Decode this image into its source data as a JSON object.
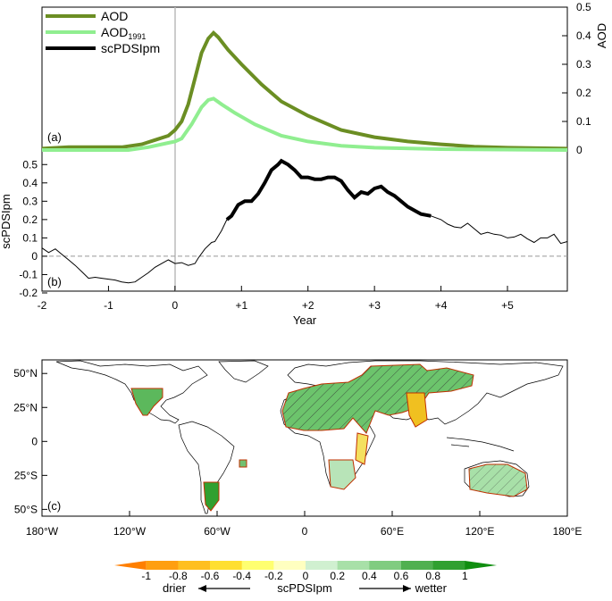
{
  "chart_data": [
    {
      "panel_label": "(a)",
      "type": "line",
      "ylabel": "AOD",
      "ylim": [
        0,
        0.5
      ],
      "yticks": [
        "0",
        "0.1",
        "0.2",
        "0.3",
        "0.4",
        "0.5"
      ],
      "xlim": [
        -2,
        5.9
      ],
      "legend": {
        "aod": "AOD",
        "aod1991_base": "AOD",
        "aod1991_sub": "1991",
        "spdsi": "scPDSIpm"
      },
      "series": [
        {
          "name": "AOD",
          "color": "#6b8e23",
          "points": [
            [
              -2,
              0.005
            ],
            [
              -1.6,
              0.01
            ],
            [
              -1.2,
              0.01
            ],
            [
              -0.8,
              0.01
            ],
            [
              -0.5,
              0.02
            ],
            [
              -0.3,
              0.035
            ],
            [
              -0.1,
              0.05
            ],
            [
              0,
              0.07
            ],
            [
              0.1,
              0.1
            ],
            [
              0.2,
              0.16
            ],
            [
              0.3,
              0.25
            ],
            [
              0.4,
              0.34
            ],
            [
              0.5,
              0.39
            ],
            [
              0.58,
              0.41
            ],
            [
              0.65,
              0.395
            ],
            [
              0.8,
              0.35
            ],
            [
              1,
              0.3
            ],
            [
              1.3,
              0.23
            ],
            [
              1.6,
              0.17
            ],
            [
              2,
              0.12
            ],
            [
              2.5,
              0.07
            ],
            [
              3,
              0.045
            ],
            [
              3.5,
              0.03
            ],
            [
              4,
              0.02
            ],
            [
              4.5,
              0.012
            ],
            [
              5,
              0.008
            ],
            [
              5.9,
              0.005
            ]
          ]
        },
        {
          "name": "AOD1991",
          "color": "#90ee90",
          "points": [
            [
              -2,
              0
            ],
            [
              -1.2,
              0
            ],
            [
              -0.7,
              0
            ],
            [
              -0.4,
              0.01
            ],
            [
              -0.1,
              0.025
            ],
            [
              0,
              0.03
            ],
            [
              0.1,
              0.04
            ],
            [
              0.25,
              0.09
            ],
            [
              0.4,
              0.15
            ],
            [
              0.5,
              0.175
            ],
            [
              0.58,
              0.18
            ],
            [
              0.7,
              0.16
            ],
            [
              0.9,
              0.13
            ],
            [
              1.2,
              0.09
            ],
            [
              1.6,
              0.05
            ],
            [
              2,
              0.03
            ],
            [
              2.5,
              0.015
            ],
            [
              3,
              0.008
            ],
            [
              4,
              0.003
            ],
            [
              5.9,
              0
            ]
          ]
        }
      ]
    },
    {
      "panel_label": "(b)",
      "type": "line",
      "ylabel": "scPDSIpm",
      "ylim": [
        -0.2,
        0.55
      ],
      "yticks": [
        "0.5",
        "0.4",
        "0.3",
        "0.2",
        "0.1",
        "0",
        "-0.1",
        "-0.2"
      ],
      "xlabel": "Year",
      "xticks": [
        "-2",
        "-1",
        "0",
        "+1",
        "+2",
        "+3",
        "+4",
        "+5"
      ],
      "xtick_values": [
        -2,
        -1,
        0,
        1,
        2,
        3,
        4,
        5
      ],
      "xlim": [
        -2,
        5.9
      ],
      "zero_line": true,
      "series": [
        {
          "name": "scPDSIpm",
          "color": "#000000",
          "points": [
            [
              -2,
              0.045
            ],
            [
              -1.9,
              0.02
            ],
            [
              -1.8,
              0.04
            ],
            [
              -1.7,
              0.01
            ],
            [
              -1.6,
              -0.02
            ],
            [
              -1.5,
              -0.05
            ],
            [
              -1.4,
              -0.085
            ],
            [
              -1.3,
              -0.12
            ],
            [
              -1.2,
              -0.115
            ],
            [
              -1.1,
              -0.12
            ],
            [
              -1,
              -0.125
            ],
            [
              -0.9,
              -0.13
            ],
            [
              -0.8,
              -0.14
            ],
            [
              -0.7,
              -0.145
            ],
            [
              -0.6,
              -0.14
            ],
            [
              -0.5,
              -0.115
            ],
            [
              -0.4,
              -0.09
            ],
            [
              -0.3,
              -0.06
            ],
            [
              -0.2,
              -0.04
            ],
            [
              -0.1,
              -0.02
            ],
            [
              0,
              -0.04
            ],
            [
              0.1,
              -0.035
            ],
            [
              0.2,
              -0.05
            ],
            [
              0.3,
              -0.04
            ],
            [
              0.35,
              -0.01
            ],
            [
              0.45,
              0.04
            ],
            [
              0.55,
              0.075
            ],
            [
              0.6,
              0.08
            ],
            [
              0.7,
              0.14
            ],
            [
              0.78,
              0.2
            ],
            [
              0.85,
              0.22
            ],
            [
              0.95,
              0.28
            ],
            [
              1.05,
              0.3
            ],
            [
              1.15,
              0.3
            ],
            [
              1.25,
              0.34
            ],
            [
              1.35,
              0.4
            ],
            [
              1.45,
              0.47
            ],
            [
              1.55,
              0.5
            ],
            [
              1.6,
              0.52
            ],
            [
              1.7,
              0.5
            ],
            [
              1.8,
              0.47
            ],
            [
              1.9,
              0.43
            ],
            [
              2,
              0.43
            ],
            [
              2.1,
              0.42
            ],
            [
              2.2,
              0.42
            ],
            [
              2.3,
              0.43
            ],
            [
              2.4,
              0.43
            ],
            [
              2.5,
              0.41
            ],
            [
              2.6,
              0.36
            ],
            [
              2.7,
              0.32
            ],
            [
              2.8,
              0.35
            ],
            [
              2.9,
              0.34
            ],
            [
              3.0,
              0.37
            ],
            [
              3.1,
              0.38
            ],
            [
              3.2,
              0.35
            ],
            [
              3.3,
              0.33
            ],
            [
              3.4,
              0.3
            ],
            [
              3.5,
              0.27
            ],
            [
              3.6,
              0.25
            ],
            [
              3.7,
              0.23
            ],
            [
              3.85,
              0.22
            ],
            [
              4,
              0.2
            ],
            [
              4.1,
              0.175
            ],
            [
              4.2,
              0.16
            ],
            [
              4.3,
              0.155
            ],
            [
              4.4,
              0.18
            ],
            [
              4.5,
              0.15
            ],
            [
              4.6,
              0.12
            ],
            [
              4.7,
              0.13
            ],
            [
              4.8,
              0.12
            ],
            [
              4.9,
              0.115
            ],
            [
              5,
              0.1
            ],
            [
              5.1,
              0.105
            ],
            [
              5.2,
              0.12
            ],
            [
              5.3,
              0.095
            ],
            [
              5.4,
              0.075
            ],
            [
              5.5,
              0.1
            ],
            [
              5.6,
              0.1
            ],
            [
              5.7,
              0.12
            ],
            [
              5.8,
              0.07
            ],
            [
              5.9,
              0.08
            ]
          ]
        }
      ],
      "highlight_range": [
        0.78,
        3.85
      ]
    },
    {
      "panel_label": "(c)",
      "type": "heatmap",
      "description_map": "scPDSIpm anomaly map",
      "lat_ticks": [
        "50°N",
        "25°N",
        "0",
        "25°S",
        "50°S"
      ],
      "lat_values": [
        50,
        25,
        0,
        -25,
        -50
      ],
      "lon_ticks": [
        "180°W",
        "120°W",
        "60°W",
        "0",
        "60°E",
        "120°E",
        "180°E"
      ],
      "lon_values": [
        -180,
        -120,
        -60,
        0,
        60,
        120,
        180
      ],
      "ylim": [
        -55,
        60
      ]
    }
  ],
  "colorbar": {
    "label": "scPDSIpm",
    "left_label": "drier",
    "right_label": "wetter",
    "tick_labels": [
      "-1",
      "-0.8",
      "-0.6",
      "-0.4",
      "-0.2",
      "0",
      "0.2",
      "0.4",
      "0.6",
      "0.8",
      "1"
    ],
    "colors": [
      "#ff7f00",
      "#ff9f10",
      "#ffbf20",
      "#ffdf30",
      "#ffff70",
      "#ffffc0",
      "#d0f0d0",
      "#a8e0a8",
      "#80cc80",
      "#50b050",
      "#30a030",
      "#108e10"
    ]
  }
}
